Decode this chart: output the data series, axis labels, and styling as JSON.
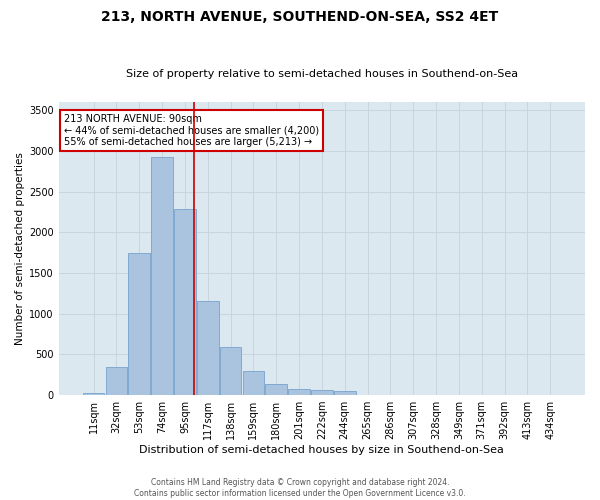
{
  "title": "213, NORTH AVENUE, SOUTHEND-ON-SEA, SS2 4ET",
  "subtitle": "Size of property relative to semi-detached houses in Southend-on-Sea",
  "xlabel": "Distribution of semi-detached houses by size in Southend-on-Sea",
  "ylabel": "Number of semi-detached properties",
  "footer_line1": "Contains HM Land Registry data © Crown copyright and database right 2024.",
  "footer_line2": "Contains public sector information licensed under the Open Government Licence v3.0.",
  "categories": [
    "11sqm",
    "32sqm",
    "53sqm",
    "74sqm",
    "95sqm",
    "117sqm",
    "138sqm",
    "159sqm",
    "180sqm",
    "201sqm",
    "222sqm",
    "244sqm",
    "265sqm",
    "286sqm",
    "307sqm",
    "328sqm",
    "349sqm",
    "371sqm",
    "392sqm",
    "413sqm",
    "434sqm"
  ],
  "bar_values": [
    30,
    340,
    1750,
    2920,
    2280,
    1160,
    590,
    300,
    130,
    80,
    60,
    50,
    0,
    0,
    0,
    0,
    0,
    0,
    0,
    0,
    0
  ],
  "bar_color": "#aac4df",
  "bar_edgecolor": "#6898c8",
  "bar_linewidth": 0.5,
  "grid_color": "#c8d4e0",
  "bg_color": "#dce8f0",
  "red_line_color": "#cc0000",
  "red_line_x": 4.42,
  "annotation_text": "213 NORTH AVENUE: 90sqm\n← 44% of semi-detached houses are smaller (4,200)\n55% of semi-detached houses are larger (5,213) →",
  "annotation_box_facecolor": "white",
  "annotation_box_edgecolor": "#cc0000",
  "ylim": [
    0,
    3600
  ],
  "yticks": [
    0,
    500,
    1000,
    1500,
    2000,
    2500,
    3000,
    3500
  ],
  "title_fontsize": 10,
  "subtitle_fontsize": 8,
  "xlabel_fontsize": 8,
  "ylabel_fontsize": 7.5,
  "tick_fontsize": 7,
  "annotation_fontsize": 7,
  "footer_fontsize": 5.5
}
